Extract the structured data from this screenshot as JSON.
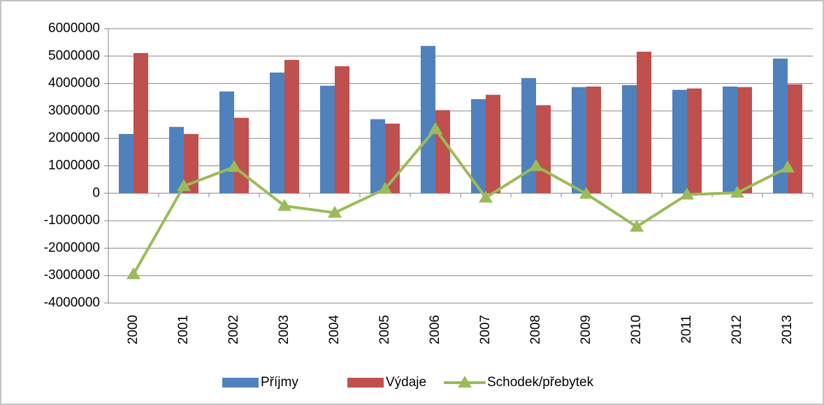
{
  "chart_data": {
    "type": "bar",
    "categories": [
      "2000",
      "2001",
      "2002",
      "2003",
      "2004",
      "2005",
      "2006",
      "2007",
      "2008",
      "2009",
      "2010",
      "2011",
      "2012",
      "2013"
    ],
    "series": [
      {
        "name": "Příjmy",
        "color": "#4f81bd",
        "type": "bar",
        "values": [
          2160000,
          2420000,
          3710000,
          4400000,
          3920000,
          2700000,
          5370000,
          3430000,
          4200000,
          3870000,
          3940000,
          3770000,
          3890000,
          4910000
        ]
      },
      {
        "name": "Výdaje",
        "color": "#c0504d",
        "type": "bar",
        "values": [
          5110000,
          2160000,
          2750000,
          4860000,
          4630000,
          2540000,
          3030000,
          3590000,
          3210000,
          3890000,
          5160000,
          3820000,
          3870000,
          3970000
        ]
      },
      {
        "name": "Schodek/přebytek",
        "color": "#9bbb59",
        "type": "line",
        "values": [
          -2950000,
          260000,
          960000,
          -460000,
          -710000,
          160000,
          2340000,
          -160000,
          990000,
          -20000,
          -1220000,
          -50000,
          20000,
          940000
        ]
      }
    ],
    "ylim": [
      -4000000,
      6000000
    ],
    "yticks": [
      -4000000,
      -3000000,
      -2000000,
      -1000000,
      0,
      1000000,
      2000000,
      3000000,
      4000000,
      5000000,
      6000000
    ],
    "grid": true,
    "legend": "bottom"
  }
}
